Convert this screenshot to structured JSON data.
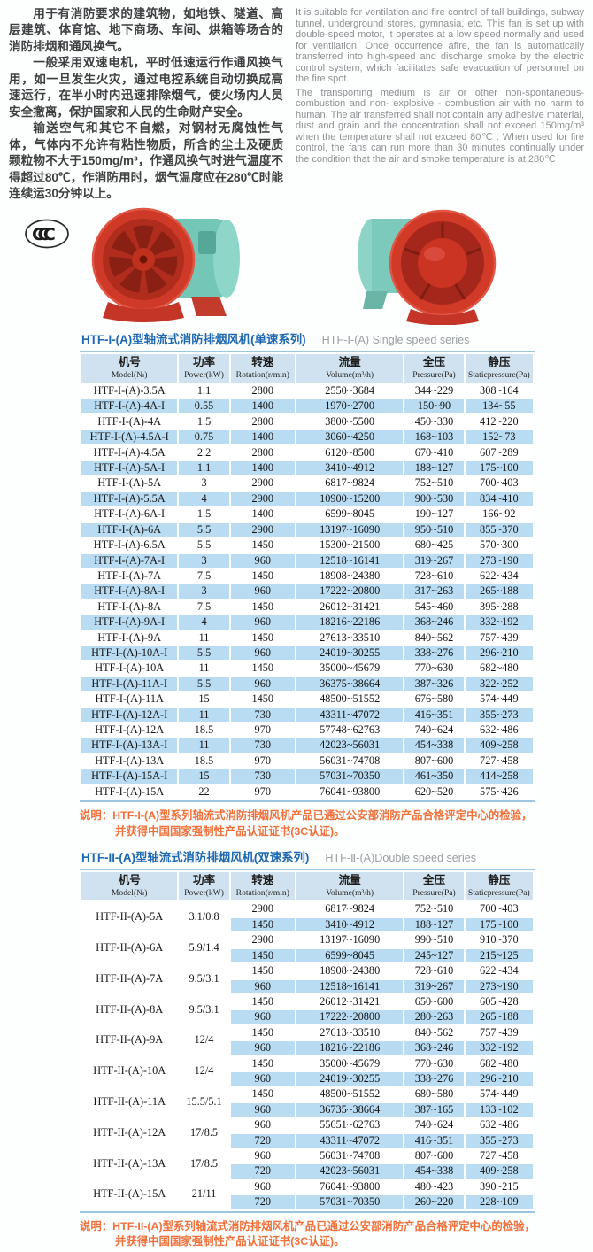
{
  "intro_zh": {
    "p1": "用于有消防要求的建筑物，如地铁、隧道、高层建筑、体育馆、地下商场、车间、烘箱等场合的消防排烟和通风换气。",
    "p2": "一般采用双速电机，平时低速运行作通风换气用，如一旦发生火灾，通过电控系统自动切换成高速运行，在半小时内迅速排除烟气，使火场内人员安全撤离，保护国家和人民的生命财产安全。",
    "p3": "输送空气和其它不自燃，对钢材无腐蚀性气体，气体内不允许有粘性物质，所含的尘土及硬质颗粒物不大于150mg/m³，作通风换气时进气温度不得超过80℃，作消防用时，烟气温度应在280℃时能连续运30分钟以上。"
  },
  "intro_en": {
    "p1": "It is suitable for ventilation and fire control of tall buildings, subway tunnel, underground stores, gymnasia, etc. This fan is set up with double-speed motor, it operates at a low speed normally and used for ventilation. Once occurrence afire, the fan is automatically transferred into high-speed and discharge smoke by the electric control system, which facilitates safe evacuation of personnel on the fire spot.",
    "p2": "The transporting medium is air or other non-spontaneous-combustion and non- explosive - combustion air with no harm to human. The air transferred shall not contain any adhesive material, dust and grain and the concentration shall not exceed 150mg/m³ when the temperature shall not exceed 80℃ . When used for fire control, the fans can run more than 30 minutes continually under the condition that the air and smoke temperature is at 280℃"
  },
  "ccc_mark_label": "CCC",
  "table_headers": [
    {
      "zh": "机号",
      "en": "Model(№)"
    },
    {
      "zh": "功率",
      "en": "Power(kW)"
    },
    {
      "zh": "转速",
      "en": "Rotation(r/min)"
    },
    {
      "zh": "流量",
      "en": "Volume(m³/h)"
    },
    {
      "zh": "全压",
      "en": "Pressure(Pa)"
    },
    {
      "zh": "静压",
      "en": "Staticpressure(Pa)"
    }
  ],
  "table1": {
    "title_zh": "HTF-I-(A)型轴流式消防排烟风机(单速系列)",
    "title_en": "HTF-Ⅰ-(A) Single speed series",
    "rows": [
      [
        "HTF-I-(A)-3.5A",
        "1.1",
        "2800",
        "2550~3684",
        "344~229",
        "308~164"
      ],
      [
        "HTF-I-(A)-4A-I",
        "0.55",
        "1400",
        "1970~2700",
        "150~90",
        "134~55"
      ],
      [
        "HTF-I-(A)-4A",
        "1.5",
        "2800",
        "3800~5500",
        "450~330",
        "412~220"
      ],
      [
        "HTF-I-(A)-4.5A-I",
        "0.75",
        "1400",
        "3060~4250",
        "168~103",
        "152~73"
      ],
      [
        "HTF-I-(A)-4.5A",
        "2.2",
        "2800",
        "6120~8500",
        "670~410",
        "607~289"
      ],
      [
        "HTF-I-(A)-5A-I",
        "1.1",
        "1400",
        "3410~4912",
        "188~127",
        "175~100"
      ],
      [
        "HTF-I-(A)-5A",
        "3",
        "2900",
        "6817~9824",
        "752~510",
        "700~403"
      ],
      [
        "HTF-I-(A)-5.5A",
        "4",
        "2900",
        "10900~15200",
        "900~530",
        "834~410"
      ],
      [
        "HTF-I-(A)-6A-I",
        "1.5",
        "1400",
        "6599~8045",
        "190~127",
        "166~92"
      ],
      [
        "HTF-I-(A)-6A",
        "5.5",
        "2900",
        "13197~16090",
        "950~510",
        "855~370"
      ],
      [
        "HTF-I-(A)-6.5A",
        "5.5",
        "1450",
        "15300~21500",
        "680~425",
        "570~300"
      ],
      [
        "HTF-I-(A)-7A-I",
        "3",
        "960",
        "12518~16141",
        "319~267",
        "273~190"
      ],
      [
        "HTF-I-(A)-7A",
        "7.5",
        "1450",
        "18908~24380",
        "728~610",
        "622~434"
      ],
      [
        "HTF-I-(A)-8A-I",
        "3",
        "960",
        "17222~20800",
        "317~263",
        "265~188"
      ],
      [
        "HTF-I-(A)-8A",
        "7.5",
        "1450",
        "26012~31421",
        "545~460",
        "395~288"
      ],
      [
        "HTF-I-(A)-9A-I",
        "4",
        "960",
        "18216~22186",
        "368~246",
        "332~192"
      ],
      [
        "HTF-I-(A)-9A",
        "11",
        "1450",
        "27613~33510",
        "840~562",
        "757~439"
      ],
      [
        "HTF-I-(A)-10A-I",
        "5.5",
        "960",
        "24019~30255",
        "338~276",
        "296~210"
      ],
      [
        "HTF-I-(A)-10A",
        "11",
        "1450",
        "35000~45679",
        "770~630",
        "682~480"
      ],
      [
        "HTF-I-(A)-11A-I",
        "5.5",
        "960",
        "36375~38664",
        "387~326",
        "322~252"
      ],
      [
        "HTF-I-(A)-11A",
        "15",
        "1450",
        "48500~51552",
        "676~580",
        "574~449"
      ],
      [
        "HTF-I-(A)-12A-I",
        "11",
        "730",
        "43311~47072",
        "416~351",
        "355~273"
      ],
      [
        "HTF-I-(A)-12A",
        "18.5",
        "970",
        "57748~62763",
        "740~624",
        "632~486"
      ],
      [
        "HTF-I-(A)-13A-I",
        "11",
        "730",
        "42023~56031",
        "454~338",
        "409~258"
      ],
      [
        "HTF-I-(A)-13A",
        "18.5",
        "970",
        "56031~74708",
        "807~600",
        "727~458"
      ],
      [
        "HTF-I-(A)-15A-I",
        "15",
        "730",
        "57031~70350",
        "461~350",
        "414~258"
      ],
      [
        "HTF-I-(A)-15A",
        "22",
        "970",
        "76041~93800",
        "620~520",
        "575~426"
      ]
    ],
    "note_line1": "说明：HTF-I-(A)型系列轴流式消防排烟风机产品已通过公安部消防产品合格评定中心的检验，",
    "note_line2": "并获得中国国家强制性产品认证证书(3C认证)。"
  },
  "table2": {
    "title_zh": "HTF-II-(A)型轴流式消防排烟风机(双速系列)",
    "title_en": "HTF-Ⅱ-(A)Double speed series",
    "groups": [
      {
        "model": "HTF-II-(A)-5A",
        "power": "3.1/0.8",
        "speeds": [
          [
            "2900",
            "6817~9824",
            "752~510",
            "700~403"
          ],
          [
            "1450",
            "3410~4912",
            "188~127",
            "175~100"
          ]
        ]
      },
      {
        "model": "HTF-II-(A)-6A",
        "power": "5.9/1.4",
        "speeds": [
          [
            "2900",
            "13197~16090",
            "990~510",
            "910~370"
          ],
          [
            "1450",
            "6599~8045",
            "245~127",
            "215~125"
          ]
        ]
      },
      {
        "model": "HTF-II-(A)-7A",
        "power": "9.5/3.1",
        "speeds": [
          [
            "1450",
            "18908~24380",
            "728~610",
            "622~434"
          ],
          [
            "960",
            "12518~16141",
            "319~267",
            "273~190"
          ]
        ]
      },
      {
        "model": "HTF-II-(A)-8A",
        "power": "9.5/3.1",
        "speeds": [
          [
            "1450",
            "26012~31421",
            "650~600",
            "605~428"
          ],
          [
            "960",
            "17222~20800",
            "280~263",
            "265~188"
          ]
        ]
      },
      {
        "model": "HTF-II-(A)-9A",
        "power": "12/4",
        "speeds": [
          [
            "1450",
            "27613~33510",
            "840~562",
            "757~439"
          ],
          [
            "960",
            "18216~22186",
            "368~246",
            "332~192"
          ]
        ]
      },
      {
        "model": "HTF-II-(A)-10A",
        "power": "12/4",
        "speeds": [
          [
            "1450",
            "35000~45679",
            "770~630",
            "682~480"
          ],
          [
            "960",
            "24019~30255",
            "338~276",
            "296~210"
          ]
        ]
      },
      {
        "model": "HTF-II-(A)-11A",
        "power": "15.5/5.1",
        "speeds": [
          [
            "1450",
            "48500~51552",
            "680~580",
            "574~449"
          ],
          [
            "960",
            "36735~38664",
            "387~165",
            "133~102"
          ]
        ]
      },
      {
        "model": "HTF-II-(A)-12A",
        "power": "17/8.5",
        "speeds": [
          [
            "960",
            "55651~62763",
            "740~624",
            "632~486"
          ],
          [
            "720",
            "43311~47072",
            "416~351",
            "355~273"
          ]
        ]
      },
      {
        "model": "HTF-II-(A)-13A",
        "power": "17/8.5",
        "speeds": [
          [
            "960",
            "56031~74708",
            "807~600",
            "727~458"
          ],
          [
            "720",
            "42023~56031",
            "454~338",
            "409~258"
          ]
        ]
      },
      {
        "model": "HTF-II-(A)-15A",
        "power": "21/11",
        "speeds": [
          [
            "960",
            "76041~93800",
            "480~423",
            "390~215"
          ],
          [
            "720",
            "57031~70350",
            "260~220",
            "228~109"
          ]
        ]
      }
    ],
    "note_line1": "说明：HTF-II-(A)型系列轴流式消防排烟风机产品已通过公安部消防产品合格评定中心的检验，",
    "note_line2": "并获得中国国家强制性产品认证证书(3C认证)。"
  },
  "colors": {
    "title_blue": "#1e68b1",
    "note_orange": "#f0703a",
    "row_blue": "#b9dcf2",
    "header_bg": "#d0e2ef",
    "fan_red": "#d23a28",
    "fan_dark_red": "#8a2014",
    "fan_teal": "#76c8b8"
  }
}
